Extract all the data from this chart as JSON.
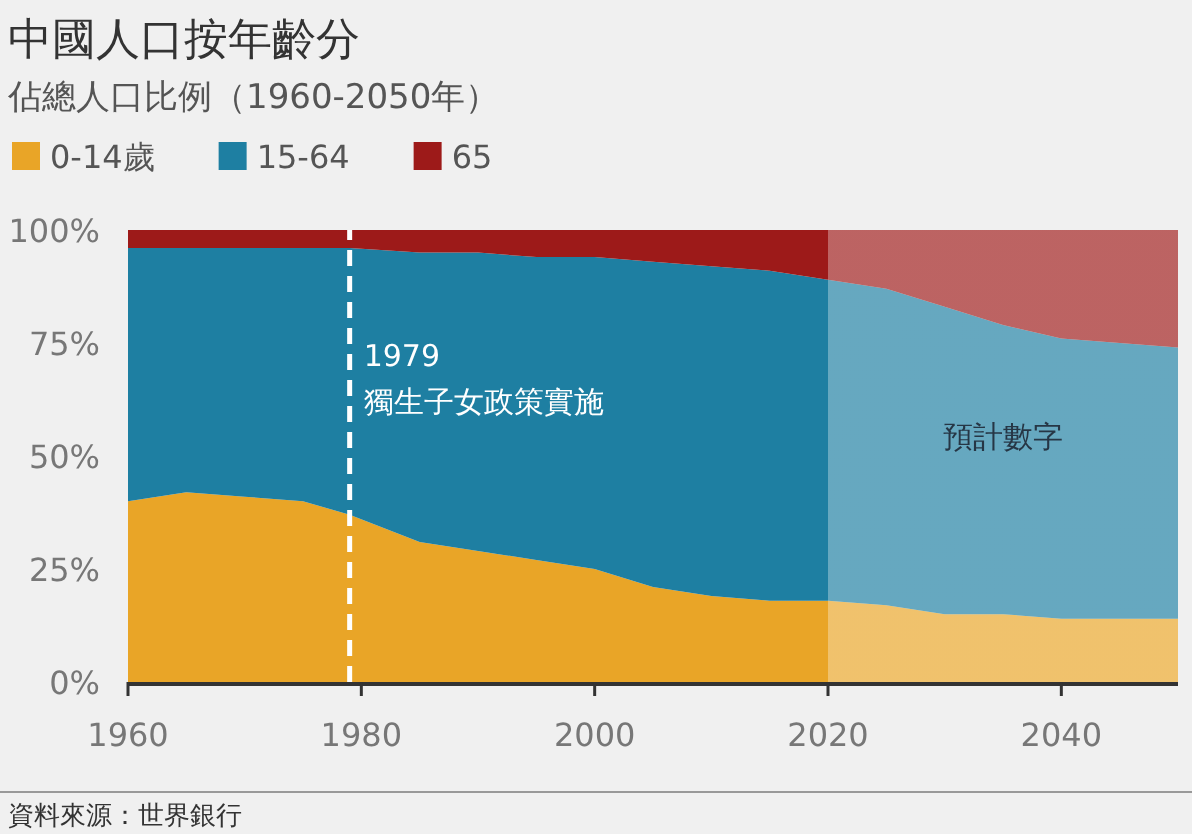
{
  "chart_data": {
    "type": "area",
    "stacked": true,
    "title": "中國人口按年齡分",
    "subtitle": "佔總人口比例（1960-2050年）",
    "x": [
      1960,
      1965,
      1970,
      1975,
      1979,
      1985,
      1990,
      1995,
      2000,
      2005,
      2010,
      2015,
      2020,
      2025,
      2030,
      2035,
      2040,
      2045,
      2050
    ],
    "series": [
      {
        "name": "0-14歲",
        "color": "#e9a527",
        "values": [
          40,
          42,
          41,
          40,
          37,
          31,
          29,
          27,
          25,
          21,
          19,
          18,
          18,
          17,
          15,
          15,
          14,
          14,
          14
        ]
      },
      {
        "name": "15-64",
        "color": "#1e7fa2",
        "values": [
          56,
          54,
          55,
          56,
          59,
          64,
          66,
          67,
          69,
          72,
          73,
          73,
          71,
          70,
          68,
          64,
          62,
          61,
          60
        ]
      },
      {
        "name": "65",
        "color": "#9d1a19",
        "values": [
          4,
          4,
          4,
          4,
          4,
          5,
          5,
          6,
          6,
          7,
          8,
          9,
          11,
          13,
          17,
          21,
          24,
          25,
          26
        ]
      }
    ],
    "xlim": [
      1960,
      2050
    ],
    "xticks": [
      1960,
      1980,
      2000,
      2020,
      2040
    ],
    "ylim": [
      0,
      100
    ],
    "yticks": [
      {
        "value": 0,
        "label": "0%"
      },
      {
        "value": 25,
        "label": "25%"
      },
      {
        "value": 50,
        "label": "50%"
      },
      {
        "value": 75,
        "label": "75%"
      },
      {
        "value": 100,
        "label": "100%"
      }
    ],
    "legend": "top left",
    "ref_lines": [
      {
        "axis": "x",
        "value": 1979,
        "label": "1979\n獨生子女政策實施",
        "color": "#ffffff",
        "line_style": "dashed"
      }
    ],
    "bands": [
      {
        "axis": "x",
        "from": 2020,
        "to": 2050,
        "label": "預計數字",
        "color": "#ffffff"
      }
    ],
    "annotations": [
      "資料來源：世界銀行"
    ]
  }
}
